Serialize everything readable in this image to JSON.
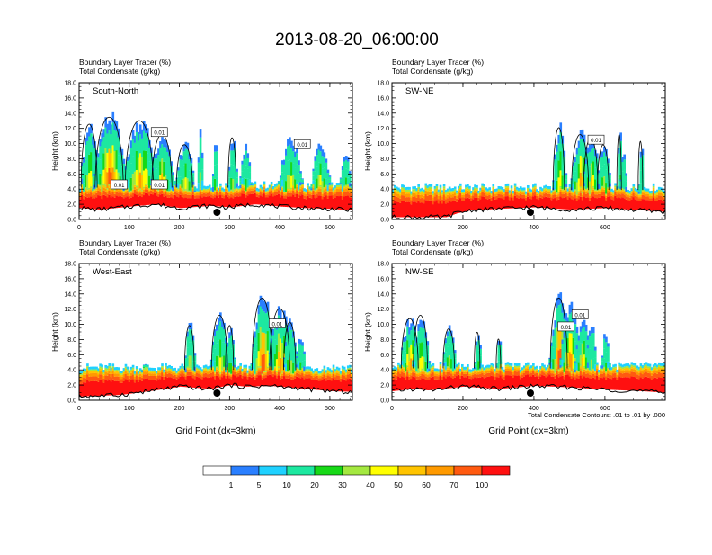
{
  "page": {
    "title": "2013-08-20_06:00:00",
    "footnote": "Total Condensate Contours: .01 to .01 by .000"
  },
  "colorbar": {
    "colors": [
      "#ffffff",
      "#2a7fff",
      "#1fd1ff",
      "#1de8a0",
      "#17d917",
      "#a4e840",
      "#ffff00",
      "#ffc400",
      "#ff9a00",
      "#ff5a10",
      "#ff1010"
    ],
    "labels": [
      "1",
      "5",
      "10",
      "20",
      "30",
      "40",
      "50",
      "60",
      "70",
      "100"
    ]
  },
  "chart_data": [
    {
      "type": "heatmap",
      "name": "South-North",
      "line1": "Boundary Layer Tracer   (%)",
      "line2": "Total Condensate   (g/kg)",
      "ylabel": "Height (km)",
      "xlabel": "",
      "xlim": [
        0,
        545
      ],
      "ylim": [
        0,
        18
      ],
      "xticks": [
        "0",
        "100",
        "200",
        "300",
        "400",
        "500"
      ],
      "xtick_values": [
        0,
        100,
        200,
        300,
        400,
        500
      ],
      "yticks": [
        "0.0",
        "2.0",
        "4.0",
        "6.0",
        "8.0",
        "10.0",
        "12.0",
        "14.0",
        "16.0",
        "18.0"
      ],
      "dot_x": 275,
      "contour_labels": [
        "0.01",
        "0.01",
        "0.01",
        "0.01"
      ],
      "contour_label_pos": [
        [
          160,
          11.4
        ],
        [
          80,
          4.5
        ],
        [
          160,
          4.5
        ],
        [
          445,
          9.8
        ]
      ]
    },
    {
      "type": "heatmap",
      "name": "SW-NE",
      "line1": "Boundary Layer Tracer   (%)",
      "line2": "Total Condensate   (g/kg)",
      "ylabel": "Height (km)",
      "xlabel": "",
      "xlim": [
        0,
        770
      ],
      "ylim": [
        0,
        18
      ],
      "xticks": [
        "0",
        "200",
        "400",
        "600"
      ],
      "xtick_values": [
        0,
        200,
        400,
        600
      ],
      "yticks": [
        "0.0",
        "2.0",
        "4.0",
        "6.0",
        "8.0",
        "10.0",
        "12.0",
        "14.0",
        "16.0",
        "18.0"
      ],
      "dot_x": 390,
      "contour_labels": [
        "0.01"
      ],
      "contour_label_pos": [
        [
          575,
          10.4
        ]
      ]
    },
    {
      "type": "heatmap",
      "name": "West-East",
      "line1": "Boundary Layer Tracer   (%)",
      "line2": "Total Condensate   (g/kg)",
      "ylabel": "Height (km)",
      "xlabel": "Grid Point (dx=3km)",
      "xlim": [
        0,
        545
      ],
      "ylim": [
        0,
        18
      ],
      "xticks": [
        "0",
        "100",
        "200",
        "300",
        "400",
        "500"
      ],
      "xtick_values": [
        0,
        100,
        200,
        300,
        400,
        500
      ],
      "yticks": [
        "0.0",
        "2.0",
        "4.0",
        "6.0",
        "8.0",
        "10.0",
        "12.0",
        "14.0",
        "16.0",
        "18.0"
      ],
      "dot_x": 275,
      "contour_labels": [
        "0.01"
      ],
      "contour_label_pos": [
        [
          395,
          10
        ]
      ]
    },
    {
      "type": "heatmap",
      "name": "NW-SE",
      "line1": "Boundary Layer Tracer   (%)",
      "line2": "Total Condensate   (g/kg)",
      "ylabel": "Height (km)",
      "xlabel": "Grid Point (dx=3km)",
      "xlim": [
        0,
        770
      ],
      "ylim": [
        0,
        18
      ],
      "xticks": [
        "0",
        "200",
        "400",
        "600"
      ],
      "xtick_values": [
        0,
        200,
        400,
        600
      ],
      "yticks": [
        "0.0",
        "2.0",
        "4.0",
        "6.0",
        "8.0",
        "10.0",
        "12.0",
        "14.0",
        "16.0",
        "18.0"
      ],
      "dot_x": 390,
      "contour_labels": [
        "0.01",
        "0.01"
      ],
      "contour_label_pos": [
        [
          490,
          9.6
        ],
        [
          530,
          11.2
        ]
      ]
    }
  ]
}
